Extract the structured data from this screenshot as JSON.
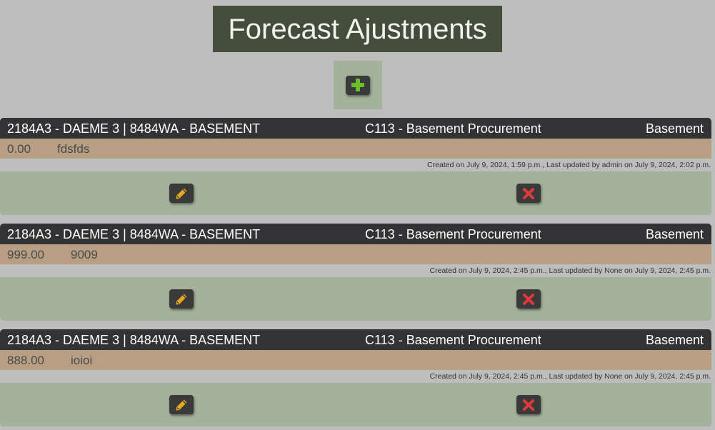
{
  "page": {
    "title": "Forecast Ajustments",
    "add_button": {
      "icon": "plus-icon",
      "color": "#6bbf2a"
    }
  },
  "colors": {
    "background": "#bdbdbd",
    "title_bg": "#444d3b",
    "header_bg": "#333235",
    "value_bg": "#b89f84",
    "actions_bg": "#a3b29a",
    "edit_icon": "#e5a81c",
    "delete_icon": "#e0393c"
  },
  "adjustments": [
    {
      "location": "2184A3 - DAEME 3 | 8484WA - BASEMENT",
      "category": "C113 - Basement Procurement",
      "area": "Basement",
      "amount": "0.00",
      "note": "fdsfds",
      "meta": "Created on July 9, 2024, 1:59 p.m., Last updated by admin on July 9, 2024, 2:02 p.m.",
      "edit_icon": "pencil-icon",
      "delete_icon": "close-icon"
    },
    {
      "location": "2184A3 - DAEME 3 | 8484WA - BASEMENT",
      "category": "C113 - Basement Procurement",
      "area": "Basement",
      "amount": "999.00",
      "note": "9009",
      "meta": "Created on July 9, 2024, 2:45 p.m., Last updated by None on July 9, 2024, 2:45 p.m.",
      "edit_icon": "pencil-icon",
      "delete_icon": "close-icon"
    },
    {
      "location": "2184A3 - DAEME 3 | 8484WA - BASEMENT",
      "category": "C113 - Basement Procurement",
      "area": "Basement",
      "amount": "888.00",
      "note": "ioioi",
      "meta": "Created on July 9, 2024, 2:45 p.m., Last updated by None on July 9, 2024, 2:45 p.m.",
      "edit_icon": "pencil-icon",
      "delete_icon": "close-icon"
    }
  ]
}
